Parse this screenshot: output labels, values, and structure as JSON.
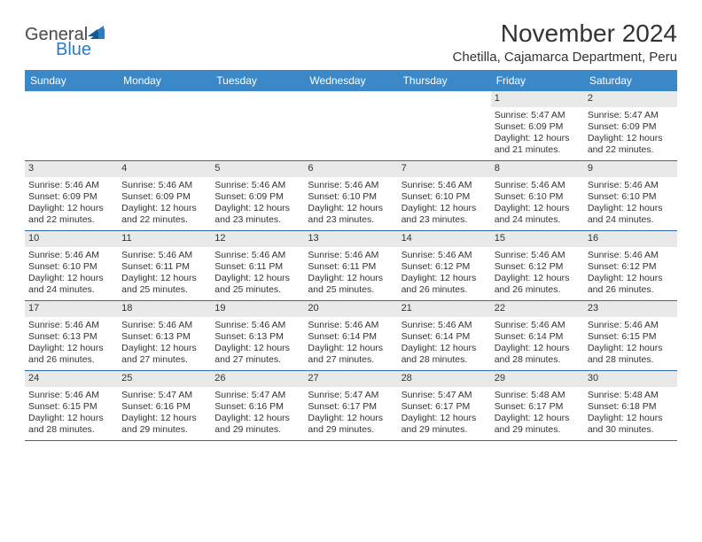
{
  "logo": {
    "general": "General",
    "blue": "Blue"
  },
  "title": "November 2024",
  "location": "Chetilla, Cajamarca Department, Peru",
  "dayHeaders": [
    "Sunday",
    "Monday",
    "Tuesday",
    "Wednesday",
    "Thursday",
    "Friday",
    "Saturday"
  ],
  "colors": {
    "headerBlue": "#3b88c9",
    "borderBlue": "#2e6ca8",
    "dateBg": "#e9e9e9",
    "logoGray": "#555558",
    "logoBlue": "#2e7cc0"
  },
  "weeks": [
    [
      {
        "empty": true
      },
      {
        "empty": true
      },
      {
        "empty": true
      },
      {
        "empty": true
      },
      {
        "empty": true
      },
      {
        "day": "1",
        "sunrise": "Sunrise: 5:47 AM",
        "sunset": "Sunset: 6:09 PM",
        "daylight1": "Daylight: 12 hours",
        "daylight2": "and 21 minutes."
      },
      {
        "day": "2",
        "sunrise": "Sunrise: 5:47 AM",
        "sunset": "Sunset: 6:09 PM",
        "daylight1": "Daylight: 12 hours",
        "daylight2": "and 22 minutes."
      }
    ],
    [
      {
        "day": "3",
        "sunrise": "Sunrise: 5:46 AM",
        "sunset": "Sunset: 6:09 PM",
        "daylight1": "Daylight: 12 hours",
        "daylight2": "and 22 minutes."
      },
      {
        "day": "4",
        "sunrise": "Sunrise: 5:46 AM",
        "sunset": "Sunset: 6:09 PM",
        "daylight1": "Daylight: 12 hours",
        "daylight2": "and 22 minutes."
      },
      {
        "day": "5",
        "sunrise": "Sunrise: 5:46 AM",
        "sunset": "Sunset: 6:09 PM",
        "daylight1": "Daylight: 12 hours",
        "daylight2": "and 23 minutes."
      },
      {
        "day": "6",
        "sunrise": "Sunrise: 5:46 AM",
        "sunset": "Sunset: 6:10 PM",
        "daylight1": "Daylight: 12 hours",
        "daylight2": "and 23 minutes."
      },
      {
        "day": "7",
        "sunrise": "Sunrise: 5:46 AM",
        "sunset": "Sunset: 6:10 PM",
        "daylight1": "Daylight: 12 hours",
        "daylight2": "and 23 minutes."
      },
      {
        "day": "8",
        "sunrise": "Sunrise: 5:46 AM",
        "sunset": "Sunset: 6:10 PM",
        "daylight1": "Daylight: 12 hours",
        "daylight2": "and 24 minutes."
      },
      {
        "day": "9",
        "sunrise": "Sunrise: 5:46 AM",
        "sunset": "Sunset: 6:10 PM",
        "daylight1": "Daylight: 12 hours",
        "daylight2": "and 24 minutes."
      }
    ],
    [
      {
        "day": "10",
        "sunrise": "Sunrise: 5:46 AM",
        "sunset": "Sunset: 6:10 PM",
        "daylight1": "Daylight: 12 hours",
        "daylight2": "and 24 minutes."
      },
      {
        "day": "11",
        "sunrise": "Sunrise: 5:46 AM",
        "sunset": "Sunset: 6:11 PM",
        "daylight1": "Daylight: 12 hours",
        "daylight2": "and 25 minutes."
      },
      {
        "day": "12",
        "sunrise": "Sunrise: 5:46 AM",
        "sunset": "Sunset: 6:11 PM",
        "daylight1": "Daylight: 12 hours",
        "daylight2": "and 25 minutes."
      },
      {
        "day": "13",
        "sunrise": "Sunrise: 5:46 AM",
        "sunset": "Sunset: 6:11 PM",
        "daylight1": "Daylight: 12 hours",
        "daylight2": "and 25 minutes."
      },
      {
        "day": "14",
        "sunrise": "Sunrise: 5:46 AM",
        "sunset": "Sunset: 6:12 PM",
        "daylight1": "Daylight: 12 hours",
        "daylight2": "and 26 minutes."
      },
      {
        "day": "15",
        "sunrise": "Sunrise: 5:46 AM",
        "sunset": "Sunset: 6:12 PM",
        "daylight1": "Daylight: 12 hours",
        "daylight2": "and 26 minutes."
      },
      {
        "day": "16",
        "sunrise": "Sunrise: 5:46 AM",
        "sunset": "Sunset: 6:12 PM",
        "daylight1": "Daylight: 12 hours",
        "daylight2": "and 26 minutes."
      }
    ],
    [
      {
        "day": "17",
        "sunrise": "Sunrise: 5:46 AM",
        "sunset": "Sunset: 6:13 PM",
        "daylight1": "Daylight: 12 hours",
        "daylight2": "and 26 minutes."
      },
      {
        "day": "18",
        "sunrise": "Sunrise: 5:46 AM",
        "sunset": "Sunset: 6:13 PM",
        "daylight1": "Daylight: 12 hours",
        "daylight2": "and 27 minutes."
      },
      {
        "day": "19",
        "sunrise": "Sunrise: 5:46 AM",
        "sunset": "Sunset: 6:13 PM",
        "daylight1": "Daylight: 12 hours",
        "daylight2": "and 27 minutes."
      },
      {
        "day": "20",
        "sunrise": "Sunrise: 5:46 AM",
        "sunset": "Sunset: 6:14 PM",
        "daylight1": "Daylight: 12 hours",
        "daylight2": "and 27 minutes."
      },
      {
        "day": "21",
        "sunrise": "Sunrise: 5:46 AM",
        "sunset": "Sunset: 6:14 PM",
        "daylight1": "Daylight: 12 hours",
        "daylight2": "and 28 minutes."
      },
      {
        "day": "22",
        "sunrise": "Sunrise: 5:46 AM",
        "sunset": "Sunset: 6:14 PM",
        "daylight1": "Daylight: 12 hours",
        "daylight2": "and 28 minutes."
      },
      {
        "day": "23",
        "sunrise": "Sunrise: 5:46 AM",
        "sunset": "Sunset: 6:15 PM",
        "daylight1": "Daylight: 12 hours",
        "daylight2": "and 28 minutes."
      }
    ],
    [
      {
        "day": "24",
        "sunrise": "Sunrise: 5:46 AM",
        "sunset": "Sunset: 6:15 PM",
        "daylight1": "Daylight: 12 hours",
        "daylight2": "and 28 minutes."
      },
      {
        "day": "25",
        "sunrise": "Sunrise: 5:47 AM",
        "sunset": "Sunset: 6:16 PM",
        "daylight1": "Daylight: 12 hours",
        "daylight2": "and 29 minutes."
      },
      {
        "day": "26",
        "sunrise": "Sunrise: 5:47 AM",
        "sunset": "Sunset: 6:16 PM",
        "daylight1": "Daylight: 12 hours",
        "daylight2": "and 29 minutes."
      },
      {
        "day": "27",
        "sunrise": "Sunrise: 5:47 AM",
        "sunset": "Sunset: 6:17 PM",
        "daylight1": "Daylight: 12 hours",
        "daylight2": "and 29 minutes."
      },
      {
        "day": "28",
        "sunrise": "Sunrise: 5:47 AM",
        "sunset": "Sunset: 6:17 PM",
        "daylight1": "Daylight: 12 hours",
        "daylight2": "and 29 minutes."
      },
      {
        "day": "29",
        "sunrise": "Sunrise: 5:48 AM",
        "sunset": "Sunset: 6:17 PM",
        "daylight1": "Daylight: 12 hours",
        "daylight2": "and 29 minutes."
      },
      {
        "day": "30",
        "sunrise": "Sunrise: 5:48 AM",
        "sunset": "Sunset: 6:18 PM",
        "daylight1": "Daylight: 12 hours",
        "daylight2": "and 30 minutes."
      }
    ]
  ]
}
